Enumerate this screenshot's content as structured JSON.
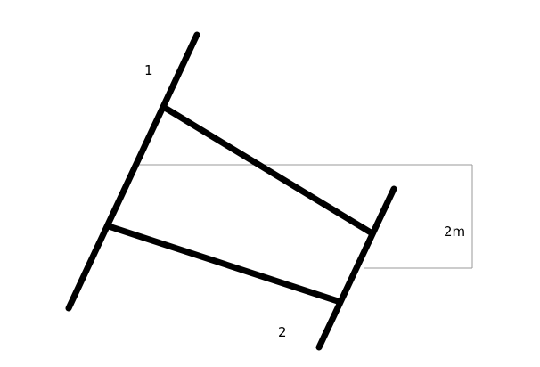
{
  "labels": {
    "section_1": "1",
    "section_2": "2",
    "height": "2m"
  },
  "colors": {
    "stroke": "#000000",
    "guide": "#9a9a9a",
    "background": "#ffffff"
  }
}
